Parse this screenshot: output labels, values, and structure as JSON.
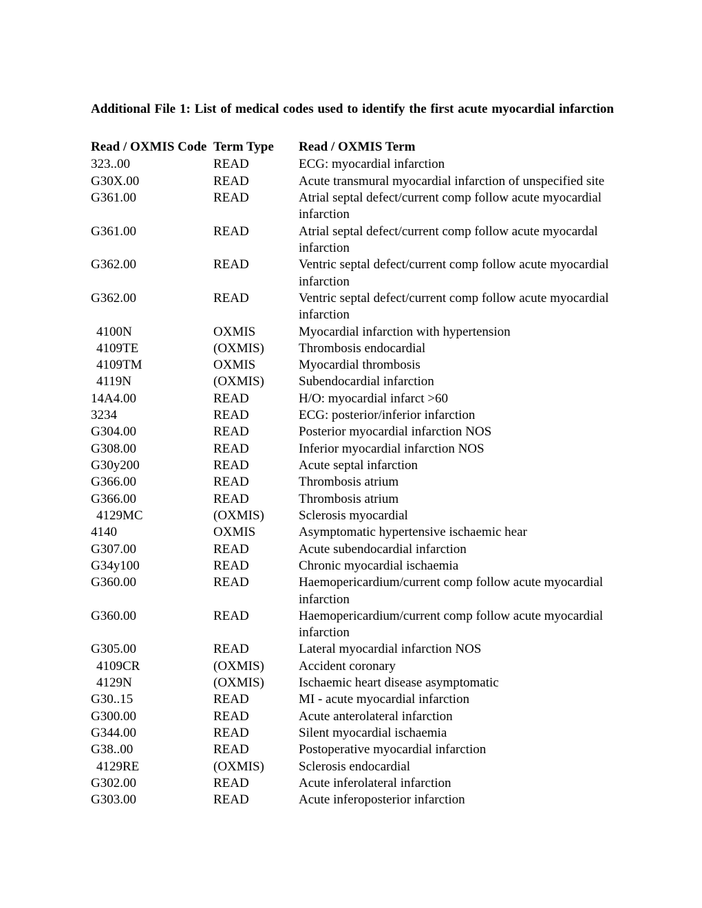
{
  "title": "Additional File 1: List of medical codes used to identify the first acute myocardial infarction",
  "columns": [
    "Read / OXMIS Code",
    "Term Type",
    "Read / OXMIS Term"
  ],
  "rows": [
    {
      "code": "323..00",
      "pad": false,
      "type": "READ",
      "term": "ECG: myocardial infarction"
    },
    {
      "code": "G30X.00",
      "pad": false,
      "type": "READ",
      "term": "Acute transmural myocardial infarction of unspecified site"
    },
    {
      "code": "G361.00",
      "pad": false,
      "type": "READ",
      "term": "Atrial septal defect/current comp follow acute myocardial infarction"
    },
    {
      "code": "G361.00",
      "pad": false,
      "type": "READ",
      "term": "Atrial septal defect/current comp follow acute myocardal infarction"
    },
    {
      "code": "G362.00",
      "pad": false,
      "type": "READ",
      "term": "Ventric septal defect/current comp follow acute myocardial infarction"
    },
    {
      "code": "G362.00",
      "pad": false,
      "type": "READ",
      "term": "Ventric septal defect/current comp follow acute myocardial infarction"
    },
    {
      "code": "4100N",
      "pad": true,
      "type": "OXMIS",
      "term": "Myocardial infarction with hypertension"
    },
    {
      "code": "4109TE",
      "pad": true,
      "type": "(OXMIS)",
      "term": "Thrombosis endocardial"
    },
    {
      "code": "4109TM",
      "pad": true,
      "type": "OXMIS",
      "term": "Myocardial thrombosis"
    },
    {
      "code": "4119N",
      "pad": true,
      "type": "(OXMIS)",
      "term": "Subendocardial infarction"
    },
    {
      "code": "14A4.00",
      "pad": false,
      "type": "READ",
      "term": "H/O: myocardial infarct >60"
    },
    {
      "code": "3234",
      "pad": false,
      "type": "READ",
      "term": "ECG: posterior/inferior infarction"
    },
    {
      "code": "G304.00",
      "pad": false,
      "type": "READ",
      "term": "Posterior myocardial infarction NOS"
    },
    {
      "code": "G308.00",
      "pad": false,
      "type": "READ",
      "term": "Inferior myocardial infarction NOS"
    },
    {
      "code": "G30y200",
      "pad": false,
      "type": "READ",
      "term": "Acute septal infarction"
    },
    {
      "code": "G366.00",
      "pad": false,
      "type": "READ",
      "term": "Thrombosis atrium"
    },
    {
      "code": "G366.00",
      "pad": false,
      "type": "READ",
      "term": "Thrombosis atrium"
    },
    {
      "code": "4129MC",
      "pad": true,
      "type": "(OXMIS)",
      "term": "Sclerosis myocardial"
    },
    {
      "code": "4140",
      "pad": false,
      "type": "OXMIS",
      "term": "Asymptomatic hypertensive ischaemic hear"
    },
    {
      "code": "G307.00",
      "pad": false,
      "type": "READ",
      "term": "Acute subendocardial infarction"
    },
    {
      "code": "G34y100",
      "pad": false,
      "type": "READ",
      "term": "Chronic myocardial ischaemia"
    },
    {
      "code": "G360.00",
      "pad": false,
      "type": "READ",
      "term": "Haemopericardium/current comp follow acute myocardial infarction"
    },
    {
      "code": "G360.00",
      "pad": false,
      "type": "READ",
      "term": "Haemopericardium/current comp follow acute myocardial infarction"
    },
    {
      "code": "G305.00",
      "pad": false,
      "type": "READ",
      "term": "Lateral myocardial infarction NOS"
    },
    {
      "code": "4109CR",
      "pad": true,
      "type": "(OXMIS)",
      "term": "Accident coronary"
    },
    {
      "code": "4129N",
      "pad": true,
      "type": "(OXMIS)",
      "term": "Ischaemic heart disease asymptomatic"
    },
    {
      "code": "G30..15",
      "pad": false,
      "type": "READ",
      "term": "MI - acute myocardial infarction"
    },
    {
      "code": "G300.00",
      "pad": false,
      "type": "READ",
      "term": "Acute anterolateral infarction"
    },
    {
      "code": "G344.00",
      "pad": false,
      "type": "READ",
      "term": "Silent myocardial ischaemia"
    },
    {
      "code": "G38..00",
      "pad": false,
      "type": "READ",
      "term": "Postoperative myocardial infarction"
    },
    {
      "code": "4129RE",
      "pad": true,
      "type": "(OXMIS)",
      "term": "Sclerosis endocardial"
    },
    {
      "code": "G302.00",
      "pad": false,
      "type": "READ",
      "term": "Acute inferolateral infarction"
    },
    {
      "code": "G303.00",
      "pad": false,
      "type": "READ",
      "term": "Acute inferoposterior infarction"
    }
  ]
}
